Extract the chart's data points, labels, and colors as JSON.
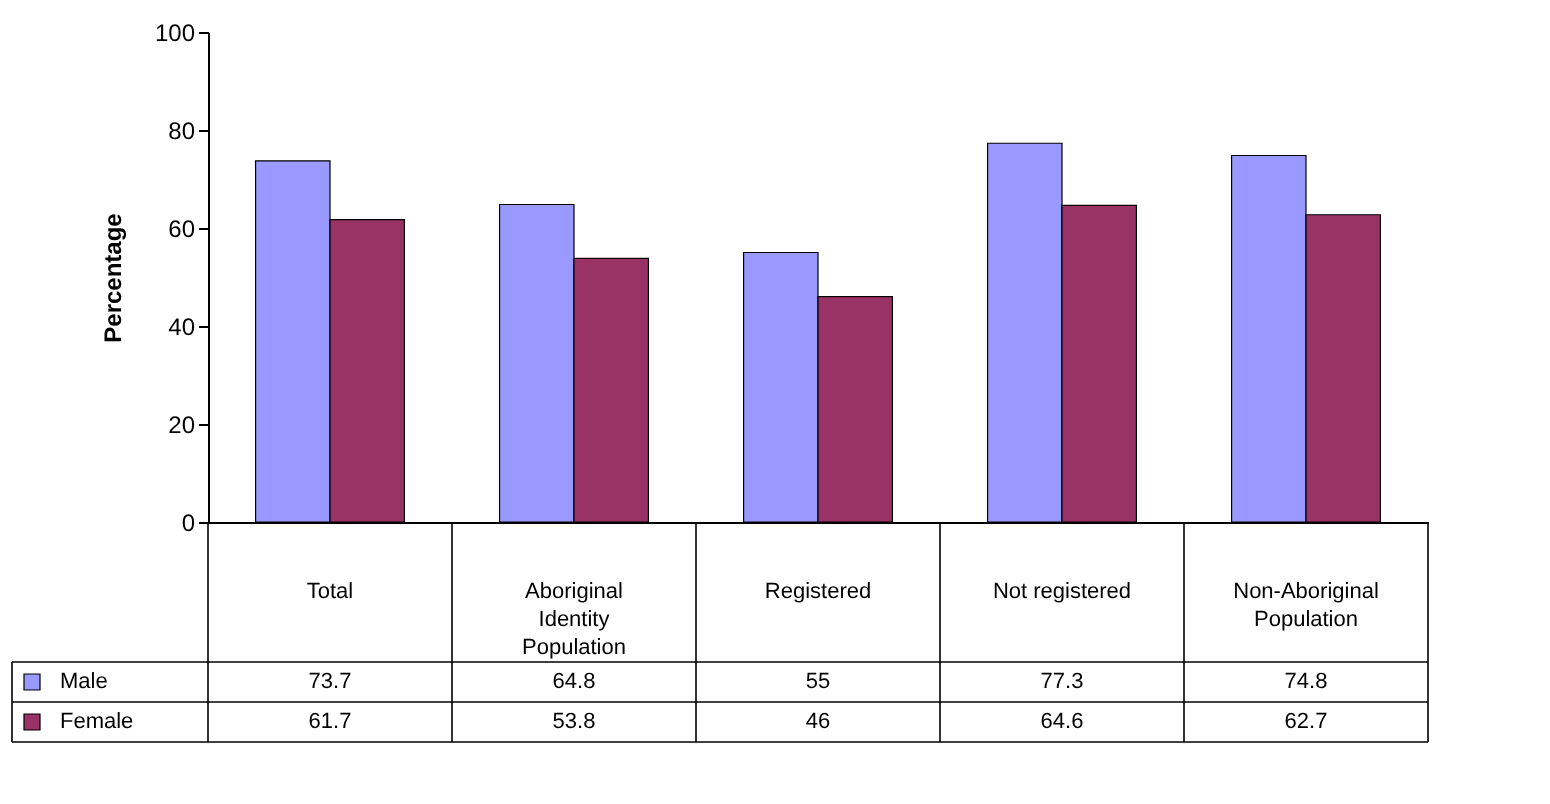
{
  "chart_data": {
    "type": "bar",
    "ylabel": "Percentage",
    "categories": [
      "Total",
      "Aboriginal Identity Population",
      "Registered",
      "Not registered",
      "Non-Aboriginal Population"
    ],
    "series": [
      {
        "name": "Male",
        "color": "#9999ff",
        "values": [
          73.7,
          64.8,
          55,
          77.3,
          74.8
        ]
      },
      {
        "name": "Female",
        "color": "#993366",
        "values": [
          61.7,
          53.8,
          46,
          64.6,
          62.7
        ]
      }
    ],
    "ylim": [
      0,
      100
    ],
    "yticks": [
      0,
      20,
      40,
      60,
      80,
      100
    ],
    "grid": false,
    "legend": "bottom",
    "data_labels": true
  }
}
